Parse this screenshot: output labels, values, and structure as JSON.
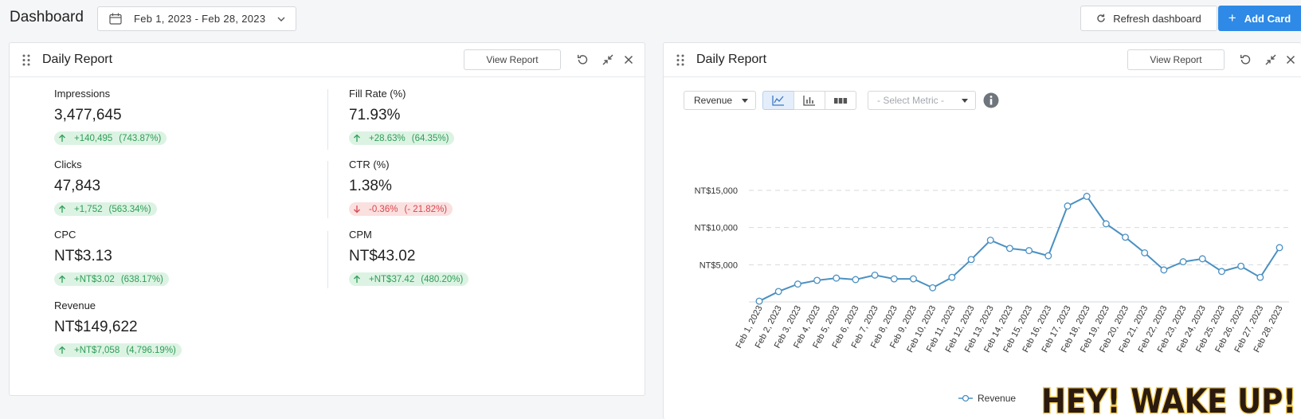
{
  "header": {
    "title": "Dashboard",
    "date_range": "Feb 1, 2023 - Feb 28, 2023",
    "refresh_label": "Refresh dashboard",
    "add_label": "Add Card",
    "accent_color": "#2e8ae6"
  },
  "left_card": {
    "title": "Daily Report",
    "view_report_label": "View Report",
    "metrics": [
      {
        "label": "Impressions",
        "value": "3,477,645",
        "delta": "+140,495",
        "pct": "(743.87%)",
        "direction": "up"
      },
      {
        "label": "Fill Rate (%)",
        "value": "71.93%",
        "delta": "+28.63%",
        "pct": "(64.35%)",
        "direction": "up"
      },
      {
        "label": "Clicks",
        "value": "47,843",
        "delta": "+1,752",
        "pct": "(563.34%)",
        "direction": "up"
      },
      {
        "label": "CTR (%)",
        "value": "1.38%",
        "delta": "-0.36%",
        "pct": "(- 21.82%)",
        "direction": "down"
      },
      {
        "label": "CPC",
        "value": "NT$3.13",
        "delta": "+NT$3.02",
        "pct": "(638.17%)",
        "direction": "up"
      },
      {
        "label": "CPM",
        "value": "NT$43.02",
        "delta": "+NT$37.42",
        "pct": "(480.20%)",
        "direction": "up"
      },
      {
        "label": "Revenue",
        "value": "NT$149,622",
        "delta": "+NT$7,058",
        "pct": "(4,796.19%)",
        "direction": "up"
      }
    ]
  },
  "right_card": {
    "title": "Daily Report",
    "view_report_label": "View Report",
    "metric_select": "Revenue",
    "select_metric_placeholder": "- Select Metric -",
    "chart_type_active": "line"
  },
  "chart_data": {
    "type": "line",
    "categories": [
      "Feb 1, 2023",
      "Feb 2, 2023",
      "Feb 3, 2023",
      "Feb 4, 2023",
      "Feb 5, 2023",
      "Feb 6, 2023",
      "Feb 7, 2023",
      "Feb 8, 2023",
      "Feb 9, 2023",
      "Feb 10, 2023",
      "Feb 11, 2023",
      "Feb 12, 2023",
      "Feb 13, 2023",
      "Feb 14, 2023",
      "Feb 15, 2023",
      "Feb 16, 2023",
      "Feb 17, 2023",
      "Feb 18, 2023",
      "Feb 19, 2023",
      "Feb 20, 2023",
      "Feb 21, 2023",
      "Feb 22, 2023",
      "Feb 23, 2023",
      "Feb 24, 2023",
      "Feb 25, 2023",
      "Feb 26, 2023",
      "Feb 27, 2023",
      "Feb 28, 2023"
    ],
    "series": [
      {
        "name": "Revenue",
        "color": "#4a90c2",
        "values": [
          100,
          1400,
          2400,
          2900,
          3200,
          3000,
          3600,
          3100,
          3100,
          1900,
          3300,
          5700,
          8300,
          7200,
          6900,
          6200,
          12900,
          14200,
          10500,
          8700,
          6600,
          4300,
          5400,
          5800,
          4100,
          4800,
          3300,
          7300
        ]
      }
    ],
    "y_ticks": [
      "NT$5,000",
      "NT$10,000",
      "NT$15,000"
    ],
    "y_tick_values": [
      5000,
      10000,
      15000
    ],
    "ylim": [
      0,
      15000
    ],
    "grid": true,
    "legend": "bottom-center"
  },
  "overlay": {
    "text": "HEY! WAKE UP!"
  }
}
